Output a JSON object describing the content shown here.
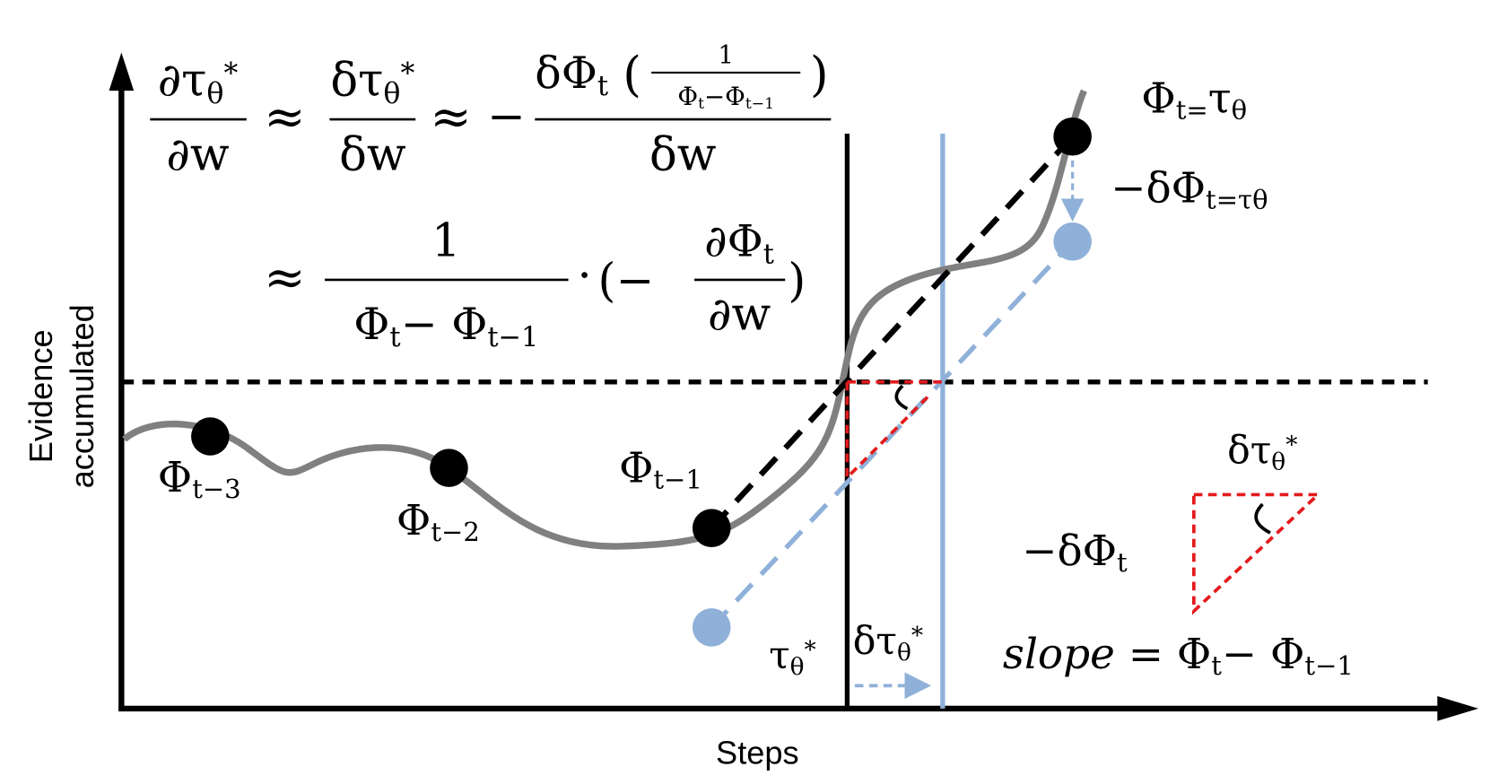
{
  "formula": {
    "approx": "≈",
    "minus": "−",
    "dot": "·",
    "dtau_dw_partial": {
      "num": [
        "∂τ",
        "θ",
        "*"
      ],
      "den": "∂w"
    },
    "dtau_dw_delta": {
      "num": [
        "δτ",
        "θ",
        "*"
      ],
      "den": "δw"
    },
    "delta_phi": {
      "num": [
        "δΦ",
        "t",
        "(",
        ")"
      ],
      "inner_num": "1",
      "inner_den": [
        "Φ",
        "t",
        "−Φ",
        "t−1"
      ],
      "den": "δw"
    },
    "ratio": {
      "num": "1",
      "den": [
        "Φ",
        "t",
        "− Φ",
        "t−1"
      ]
    },
    "dphi_dw": {
      "open": "(−",
      "num": [
        "∂Φ",
        "t"
      ],
      "den": "∂w",
      "close": ")"
    }
  },
  "points": [
    {
      "base": "Φ",
      "sub": "t−3"
    },
    {
      "base": "Φ",
      "sub": "t−2"
    },
    {
      "base": "Φ",
      "sub": "t−1"
    }
  ],
  "threshold": [
    "Φ",
    "t",
    "=",
    "τ",
    "θ"
  ],
  "threshold_shift": [
    "−δΦ",
    "t=τ",
    "θ"
  ],
  "tau_star": [
    "τ",
    "θ",
    "*"
  ],
  "delta_tau": [
    "δτ",
    "θ",
    "*"
  ],
  "legend": {
    "delta_tau": [
      "δτ",
      "θ",
      "*"
    ],
    "delta_phi": [
      "−δΦ",
      "t"
    ],
    "slope": [
      "slope",
      " = Φ",
      "t",
      "− Φ",
      "t−1"
    ]
  },
  "y_label": [
    "Evidence",
    "accumulated"
  ],
  "x_label": "Steps"
}
